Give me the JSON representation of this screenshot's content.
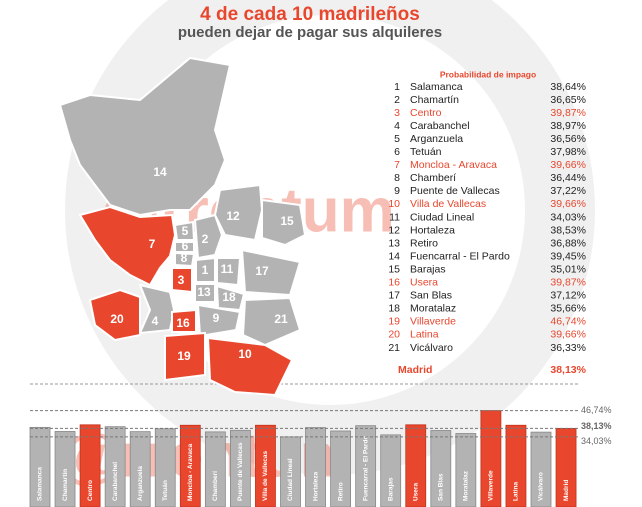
{
  "chart_data": {
    "type": "bar",
    "title": "4 de cada 10 madrileños",
    "subtitle": "pueden dejar de pagar sus alquileres",
    "table_header": "Probabilidad de impago",
    "watermark": "@rrentum",
    "ranks": [
      1,
      2,
      3,
      4,
      5,
      6,
      7,
      8,
      9,
      10,
      11,
      12,
      13,
      14,
      15,
      16,
      17,
      18,
      19,
      20,
      21
    ],
    "categories": [
      "Salamanca",
      "Chamartín",
      "Centro",
      "Carabanchel",
      "Arganzuela",
      "Tetuán",
      "Moncloa - Aravaca",
      "Chamberí",
      "Puente de Vallecas",
      "Villa de Vallecas",
      "Ciudad Lineal",
      "Hortaleza",
      "Retiro",
      "Fuencarral - El Pardo",
      "Barajas",
      "Usera",
      "San Blas",
      "Moratalaz",
      "Villaverde",
      "Latina",
      "Vicálvaro",
      "Madrid"
    ],
    "values": [
      38.64,
      36.65,
      39.87,
      38.97,
      36.56,
      37.98,
      39.66,
      36.44,
      37.22,
      39.66,
      34.03,
      38.53,
      36.88,
      39.45,
      35.01,
      39.87,
      37.12,
      35.66,
      46.74,
      39.66,
      36.33,
      38.13
    ],
    "value_labels": [
      "38,64%",
      "36,65%",
      "39,87%",
      "38,97%",
      "36,56%",
      "37,98%",
      "39,66%",
      "36,44%",
      "37,22%",
      "39,66%",
      "34,03%",
      "38,53%",
      "36,88%",
      "39,45%",
      "35,01%",
      "39,87%",
      "37,12%",
      "35,66%",
      "46,74%",
      "39,66%",
      "36,33%",
      "38,13%"
    ],
    "colors": [
      "#b3b3b3",
      "#b3b3b3",
      "#e8472e",
      "#b3b3b3",
      "#b3b3b3",
      "#b3b3b3",
      "#e8472e",
      "#b3b3b3",
      "#b3b3b3",
      "#e8472e",
      "#b3b3b3",
      "#b3b3b3",
      "#b3b3b3",
      "#b3b3b3",
      "#b3b3b3",
      "#e8472e",
      "#b3b3b3",
      "#b3b3b3",
      "#e8472e",
      "#e8472e",
      "#b3b3b3",
      "#e8472e"
    ],
    "highlight_color": "#e8472e",
    "reference_lines": [
      {
        "value": 46.74,
        "label": "46,74%"
      },
      {
        "value": 38.13,
        "label": "38,13%"
      },
      {
        "value": 34.03,
        "label": "34,03%"
      }
    ],
    "ylim": [
      0,
      49
    ]
  }
}
